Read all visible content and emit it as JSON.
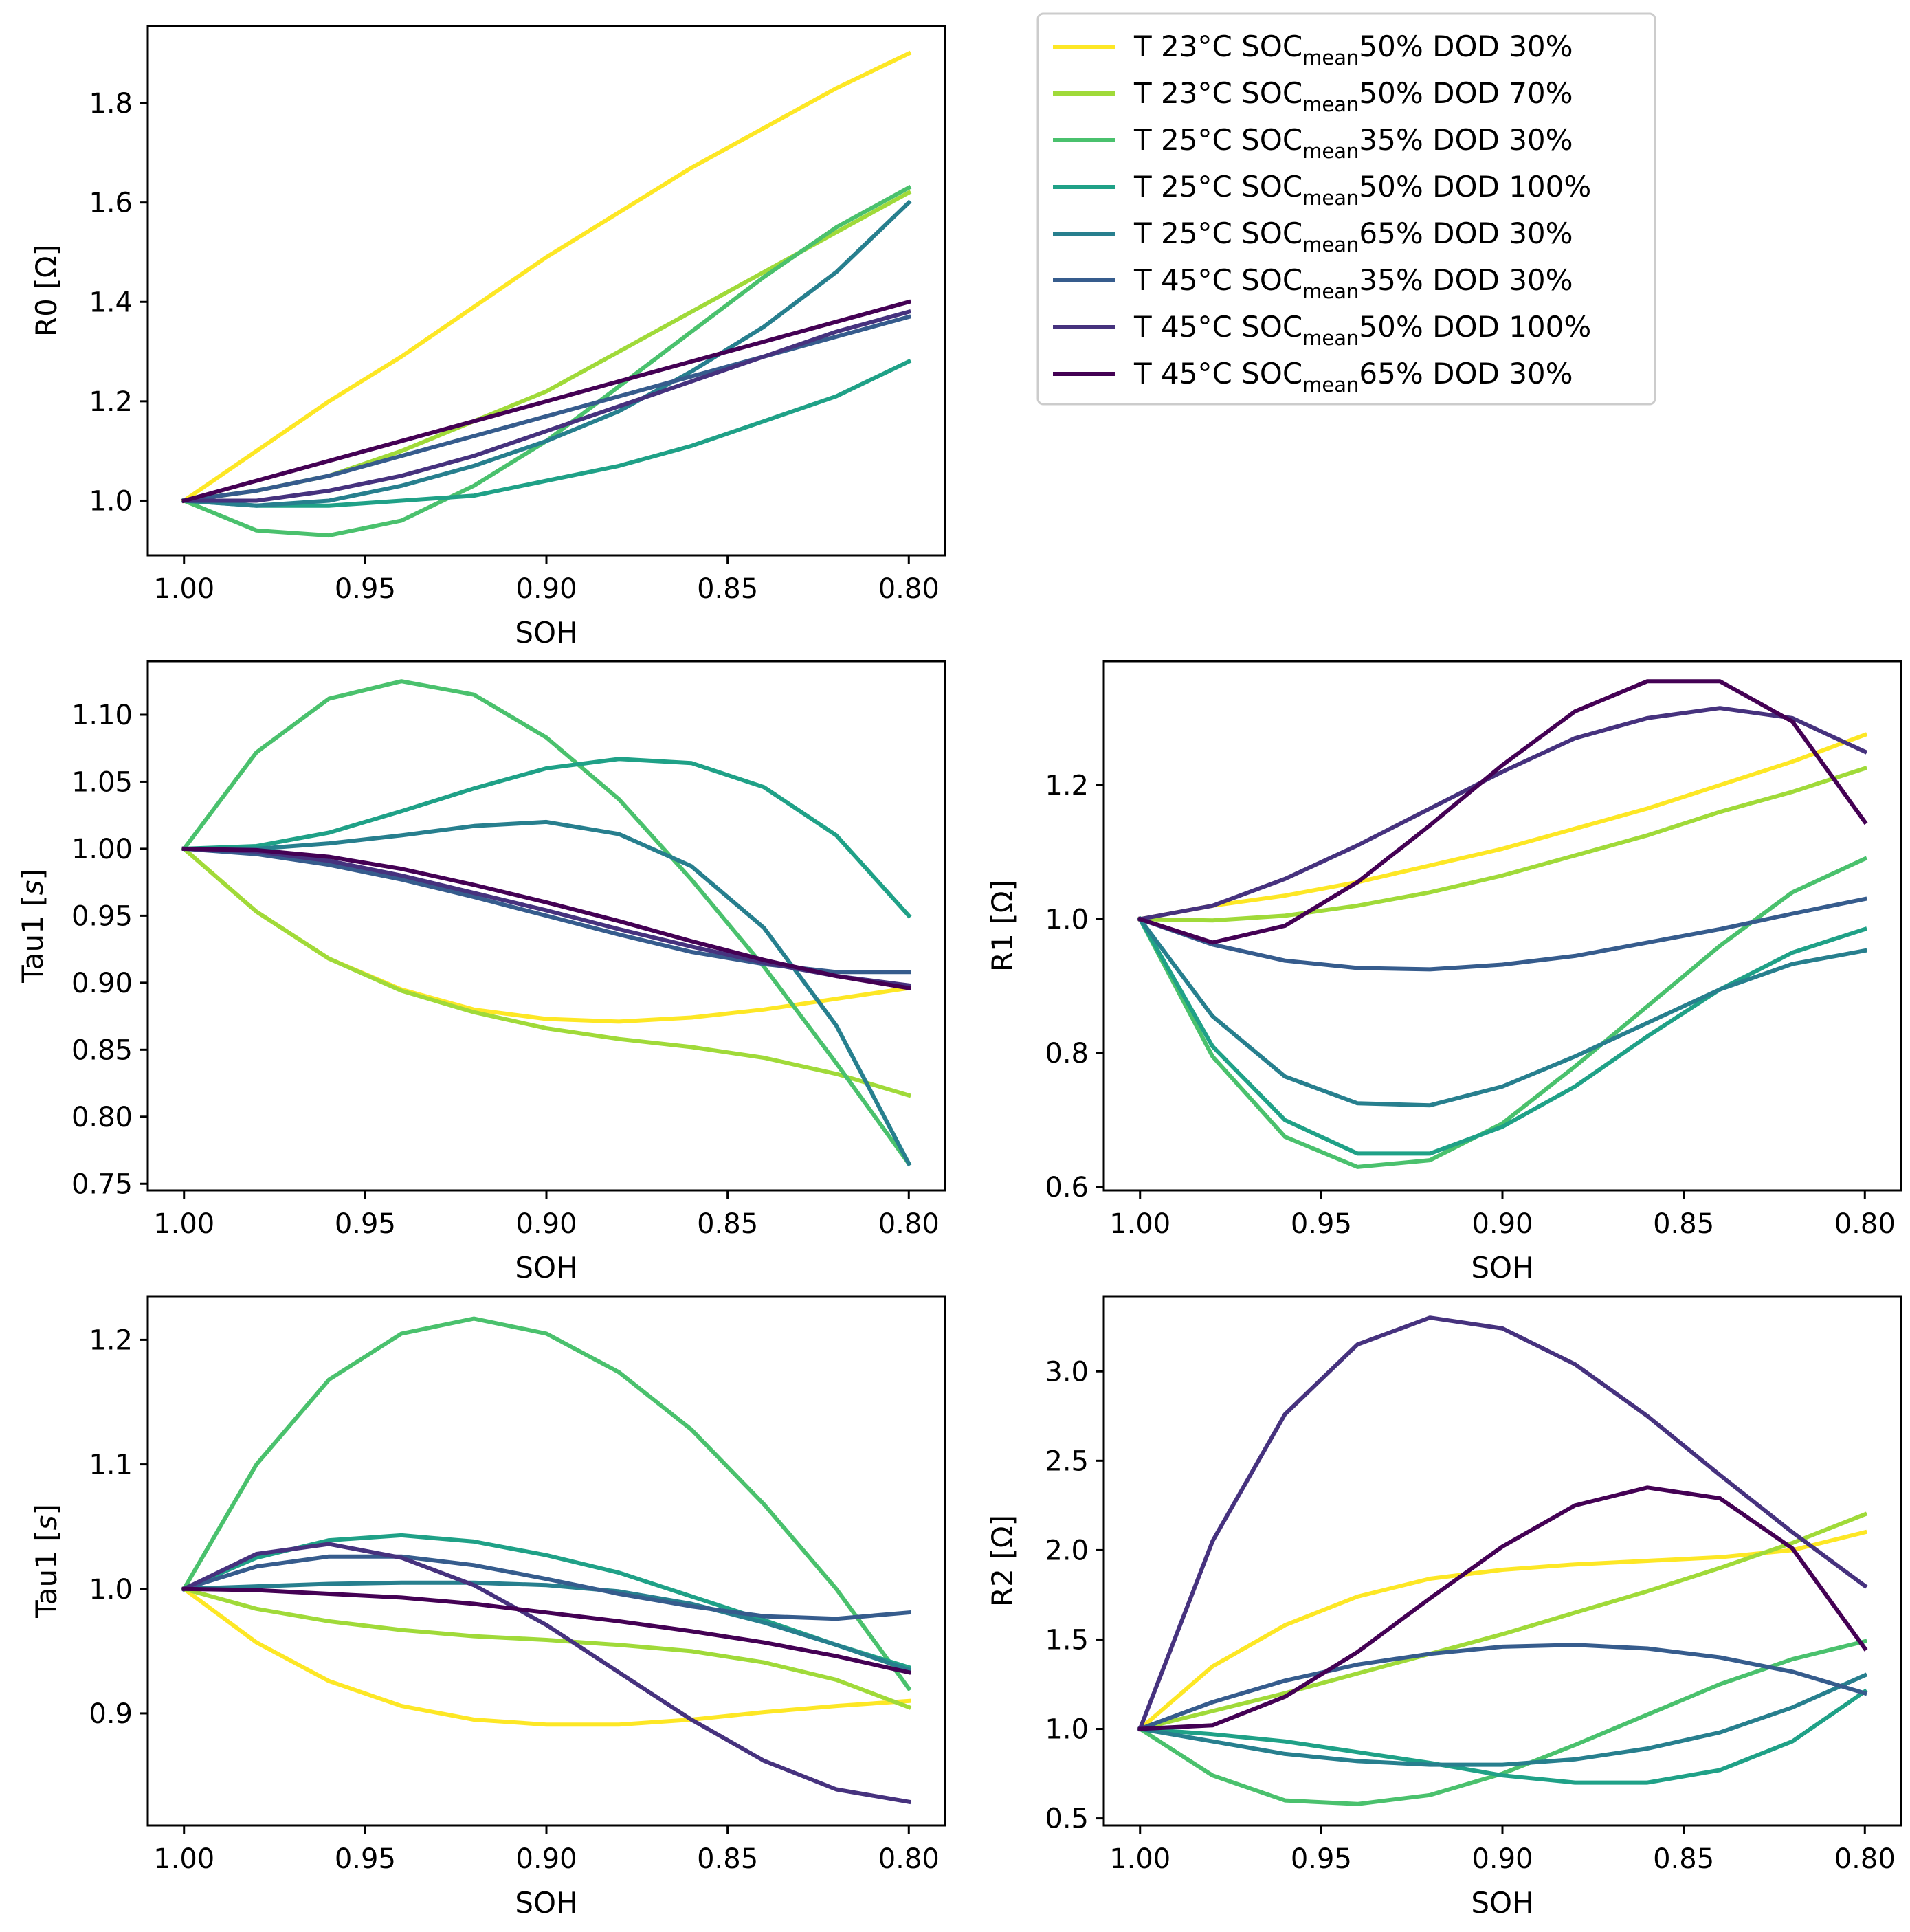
{
  "colors": [
    "#fde725",
    "#a0da39",
    "#4ac16d",
    "#1fa187",
    "#277f8e",
    "#365c8d",
    "#46327e",
    "#440154"
  ],
  "legend": {
    "entries": [
      {
        "pre": "T 23°C SOC",
        "sub": "mean",
        "post": "50% DOD 30%"
      },
      {
        "pre": "T 23°C SOC",
        "sub": "mean",
        "post": "50% DOD 70%"
      },
      {
        "pre": "T 25°C SOC",
        "sub": "mean",
        "post": "35% DOD 30%"
      },
      {
        "pre": "T 25°C SOC",
        "sub": "mean",
        "post": "50% DOD 100%"
      },
      {
        "pre": "T 25°C SOC",
        "sub": "mean",
        "post": "65% DOD 30%"
      },
      {
        "pre": "T 45°C SOC",
        "sub": "mean",
        "post": "35% DOD 30%"
      },
      {
        "pre": "T 45°C SOC",
        "sub": "mean",
        "post": "50% DOD 100%"
      },
      {
        "pre": "T 45°C SOC",
        "sub": "mean",
        "post": "65% DOD 30%"
      }
    ]
  },
  "chart_data": [
    {
      "id": "r0",
      "type": "line",
      "xlabel": "SOH",
      "ylabel": "R0 [Ω]",
      "xlim": [
        1.01,
        0.79
      ],
      "ylim": [
        0.89,
        1.955
      ],
      "xticks": [
        1.0,
        0.95,
        0.9,
        0.85,
        0.8
      ],
      "xtick_labels": [
        "1.00",
        "0.95",
        "0.90",
        "0.85",
        "0.80"
      ],
      "yticks": [
        1.0,
        1.2,
        1.4,
        1.6,
        1.8
      ],
      "ytick_labels": [
        "1.0",
        "1.2",
        "1.4",
        "1.6",
        "1.8"
      ],
      "x": [
        1.0,
        0.98,
        0.96,
        0.94,
        0.92,
        0.9,
        0.88,
        0.86,
        0.84,
        0.82,
        0.8
      ],
      "series": [
        {
          "name": "T 23°C SOCmean50% DOD 30%",
          "values": [
            1.0,
            1.1,
            1.2,
            1.29,
            1.39,
            1.49,
            1.58,
            1.67,
            1.75,
            1.83,
            1.9
          ]
        },
        {
          "name": "T 23°C SOCmean50% DOD 70%",
          "values": [
            1.0,
            1.02,
            1.05,
            1.1,
            1.16,
            1.22,
            1.3,
            1.38,
            1.46,
            1.54,
            1.62
          ]
        },
        {
          "name": "T 25°C SOCmean35% DOD 30%",
          "values": [
            1.0,
            0.94,
            0.93,
            0.96,
            1.03,
            1.12,
            1.23,
            1.34,
            1.45,
            1.55,
            1.63
          ]
        },
        {
          "name": "T 25°C SOCmean50% DOD 100%",
          "values": [
            1.0,
            0.99,
            0.99,
            1.0,
            1.01,
            1.04,
            1.07,
            1.11,
            1.16,
            1.21,
            1.28
          ]
        },
        {
          "name": "T 25°C SOCmean65% DOD 30%",
          "values": [
            1.0,
            0.99,
            1.0,
            1.03,
            1.07,
            1.12,
            1.18,
            1.26,
            1.35,
            1.46,
            1.6
          ]
        },
        {
          "name": "T 45°C SOCmean35% DOD 30%",
          "values": [
            1.0,
            1.02,
            1.05,
            1.09,
            1.13,
            1.17,
            1.21,
            1.25,
            1.29,
            1.33,
            1.37
          ]
        },
        {
          "name": "T 45°C SOCmean50% DOD 100%",
          "values": [
            1.0,
            1.0,
            1.02,
            1.05,
            1.09,
            1.14,
            1.19,
            1.24,
            1.29,
            1.34,
            1.38
          ]
        },
        {
          "name": "T 45°C SOCmean65% DOD 30%",
          "values": [
            1.0,
            1.04,
            1.08,
            1.12,
            1.16,
            1.2,
            1.24,
            1.28,
            1.32,
            1.36,
            1.4
          ]
        }
      ]
    },
    {
      "id": "tau1",
      "type": "line",
      "xlabel": "SOH",
      "ylabel": "Tau1 [s]",
      "xlim": [
        1.01,
        0.79
      ],
      "ylim": [
        0.745,
        1.14
      ],
      "xticks": [
        1.0,
        0.95,
        0.9,
        0.85,
        0.8
      ],
      "xtick_labels": [
        "1.00",
        "0.95",
        "0.90",
        "0.85",
        "0.80"
      ],
      "yticks": [
        0.75,
        0.8,
        0.85,
        0.9,
        0.95,
        1.0,
        1.05,
        1.1
      ],
      "ytick_labels": [
        "0.75",
        "0.80",
        "0.85",
        "0.90",
        "0.95",
        "1.00",
        "1.05",
        "1.10"
      ],
      "x": [
        1.0,
        0.98,
        0.96,
        0.94,
        0.92,
        0.9,
        0.88,
        0.86,
        0.84,
        0.82,
        0.8
      ],
      "series": [
        {
          "name": "T 23°C SOCmean50% DOD 30%",
          "values": [
            1.0,
            0.953,
            0.918,
            0.895,
            0.88,
            0.873,
            0.871,
            0.874,
            0.88,
            0.888,
            0.896
          ]
        },
        {
          "name": "T 23°C SOCmean50% DOD 70%",
          "values": [
            1.0,
            0.953,
            0.918,
            0.894,
            0.878,
            0.866,
            0.858,
            0.852,
            0.844,
            0.832,
            0.816
          ]
        },
        {
          "name": "T 25°C SOCmean35% DOD 30%",
          "values": [
            1.0,
            1.072,
            1.112,
            1.125,
            1.115,
            1.083,
            1.037,
            0.977,
            0.912,
            0.84,
            0.765
          ]
        },
        {
          "name": "T 25°C SOCmean50% DOD 100%",
          "values": [
            1.0,
            1.002,
            1.012,
            1.028,
            1.045,
            1.06,
            1.067,
            1.064,
            1.046,
            1.01,
            0.95
          ]
        },
        {
          "name": "T 25°C SOCmean65% DOD 30%",
          "values": [
            1.0,
            1.0,
            1.004,
            1.01,
            1.017,
            1.02,
            1.011,
            0.987,
            0.941,
            0.868,
            0.765
          ]
        },
        {
          "name": "T 45°C SOCmean35% DOD 30%",
          "values": [
            1.0,
            0.996,
            0.988,
            0.977,
            0.964,
            0.95,
            0.936,
            0.923,
            0.914,
            0.908,
            0.908
          ]
        },
        {
          "name": "T 45°C SOCmean50% DOD 100%",
          "values": [
            1.0,
            0.998,
            0.991,
            0.98,
            0.967,
            0.954,
            0.94,
            0.927,
            0.915,
            0.905,
            0.898
          ]
        },
        {
          "name": "T 45°C SOCmean65% DOD 30%",
          "values": [
            1.0,
            0.999,
            0.994,
            0.985,
            0.973,
            0.96,
            0.946,
            0.931,
            0.917,
            0.905,
            0.896
          ]
        }
      ]
    },
    {
      "id": "r1",
      "type": "line",
      "xlabel": "SOH",
      "ylabel": "R1 [Ω]",
      "xlim": [
        1.01,
        0.79
      ],
      "ylim": [
        0.595,
        1.385
      ],
      "xticks": [
        1.0,
        0.95,
        0.9,
        0.85,
        0.8
      ],
      "xtick_labels": [
        "1.00",
        "0.95",
        "0.90",
        "0.85",
        "0.80"
      ],
      "yticks": [
        0.6,
        0.8,
        1.0,
        1.2
      ],
      "ytick_labels": [
        "0.6",
        "0.8",
        "1.0",
        "1.2"
      ],
      "x": [
        1.0,
        0.98,
        0.96,
        0.94,
        0.92,
        0.9,
        0.88,
        0.86,
        0.84,
        0.82,
        0.8
      ],
      "series": [
        {
          "name": "T 23°C SOCmean50% DOD 30%",
          "values": [
            1.0,
            1.02,
            1.035,
            1.055,
            1.08,
            1.105,
            1.135,
            1.165,
            1.2,
            1.235,
            1.275
          ]
        },
        {
          "name": "T 23°C SOCmean50% DOD 70%",
          "values": [
            1.0,
            0.998,
            1.005,
            1.02,
            1.04,
            1.065,
            1.095,
            1.125,
            1.16,
            1.19,
            1.225
          ]
        },
        {
          "name": "T 25°C SOCmean35% DOD 30%",
          "values": [
            1.0,
            0.795,
            0.675,
            0.63,
            0.64,
            0.695,
            0.78,
            0.87,
            0.96,
            1.04,
            1.09
          ]
        },
        {
          "name": "T 25°C SOCmean50% DOD 100%",
          "values": [
            1.0,
            0.81,
            0.7,
            0.65,
            0.65,
            0.69,
            0.75,
            0.825,
            0.895,
            0.95,
            0.985
          ]
        },
        {
          "name": "T 25°C SOCmean65% DOD 30%",
          "values": [
            1.0,
            0.855,
            0.765,
            0.725,
            0.722,
            0.75,
            0.795,
            0.845,
            0.895,
            0.933,
            0.953
          ]
        },
        {
          "name": "T 45°C SOCmean35% DOD 30%",
          "values": [
            1.0,
            0.962,
            0.938,
            0.927,
            0.925,
            0.932,
            0.945,
            0.965,
            0.985,
            1.008,
            1.03
          ]
        },
        {
          "name": "T 45°C SOCmean50% DOD 100%",
          "values": [
            1.0,
            1.02,
            1.06,
            1.11,
            1.165,
            1.22,
            1.27,
            1.3,
            1.315,
            1.3,
            1.25
          ]
        },
        {
          "name": "T 45°C SOCmean65% DOD 30%",
          "values": [
            1.0,
            0.965,
            0.99,
            1.055,
            1.14,
            1.23,
            1.31,
            1.355,
            1.355,
            1.295,
            1.145
          ]
        }
      ]
    },
    {
      "id": "tau2",
      "type": "line",
      "xlabel": "SOH",
      "ylabel": "Tau1 [s]",
      "xlim": [
        1.01,
        0.79
      ],
      "ylim": [
        0.81,
        1.235
      ],
      "xticks": [
        1.0,
        0.95,
        0.9,
        0.85,
        0.8
      ],
      "xtick_labels": [
        "1.00",
        "0.95",
        "0.90",
        "0.85",
        "0.80"
      ],
      "yticks": [
        0.9,
        1.0,
        1.1,
        1.2
      ],
      "ytick_labels": [
        "0.9",
        "1.0",
        "1.1",
        "1.2"
      ],
      "x": [
        1.0,
        0.98,
        0.96,
        0.94,
        0.92,
        0.9,
        0.88,
        0.86,
        0.84,
        0.82,
        0.8
      ],
      "series": [
        {
          "name": "T 23°C SOCmean50% DOD 30%",
          "values": [
            1.0,
            0.957,
            0.926,
            0.906,
            0.895,
            0.891,
            0.891,
            0.895,
            0.901,
            0.906,
            0.91
          ]
        },
        {
          "name": "T 23°C SOCmean50% DOD 70%",
          "values": [
            1.0,
            0.984,
            0.974,
            0.967,
            0.962,
            0.959,
            0.955,
            0.95,
            0.941,
            0.927,
            0.905
          ]
        },
        {
          "name": "T 25°C SOCmean35% DOD 30%",
          "values": [
            1.0,
            1.1,
            1.168,
            1.205,
            1.217,
            1.205,
            1.174,
            1.128,
            1.068,
            1.0,
            0.92
          ]
        },
        {
          "name": "T 25°C SOCmean50% DOD 100%",
          "values": [
            1.0,
            1.025,
            1.039,
            1.043,
            1.038,
            1.027,
            1.013,
            0.994,
            0.975,
            0.955,
            0.937
          ]
        },
        {
          "name": "T 25°C SOCmean65% DOD 30%",
          "values": [
            1.0,
            1.002,
            1.004,
            1.005,
            1.005,
            1.003,
            0.998,
            0.988,
            0.973,
            0.955,
            0.935
          ]
        },
        {
          "name": "T 45°C SOCmean35% DOD 30%",
          "values": [
            1.0,
            1.018,
            1.026,
            1.026,
            1.019,
            1.008,
            0.996,
            0.986,
            0.978,
            0.976,
            0.981
          ]
        },
        {
          "name": "T 45°C SOCmean50% DOD 100%",
          "values": [
            1.0,
            1.028,
            1.036,
            1.025,
            1.003,
            0.971,
            0.933,
            0.895,
            0.862,
            0.839,
            0.829
          ]
        },
        {
          "name": "T 45°C SOCmean65% DOD 30%",
          "values": [
            1.0,
            0.999,
            0.996,
            0.993,
            0.988,
            0.981,
            0.974,
            0.966,
            0.957,
            0.946,
            0.933
          ]
        }
      ]
    },
    {
      "id": "r2",
      "type": "line",
      "xlabel": "SOH",
      "ylabel": "R2 [Ω]",
      "xlim": [
        1.01,
        0.79
      ],
      "ylim": [
        0.46,
        3.42
      ],
      "xticks": [
        1.0,
        0.95,
        0.9,
        0.85,
        0.8
      ],
      "xtick_labels": [
        "1.00",
        "0.95",
        "0.90",
        "0.85",
        "0.80"
      ],
      "yticks": [
        0.5,
        1.0,
        1.5,
        2.0,
        2.5,
        3.0
      ],
      "ytick_labels": [
        "0.5",
        "1.0",
        "1.5",
        "2.0",
        "2.5",
        "3.0"
      ],
      "x": [
        1.0,
        0.98,
        0.96,
        0.94,
        0.92,
        0.9,
        0.88,
        0.86,
        0.84,
        0.82,
        0.8
      ],
      "series": [
        {
          "name": "T 23°C SOCmean50% DOD 30%",
          "values": [
            1.0,
            1.35,
            1.58,
            1.74,
            1.84,
            1.89,
            1.92,
            1.94,
            1.96,
            2.0,
            2.1
          ]
        },
        {
          "name": "T 23°C SOCmean50% DOD 70%",
          "values": [
            1.0,
            1.1,
            1.2,
            1.31,
            1.42,
            1.53,
            1.65,
            1.77,
            1.9,
            2.04,
            2.2
          ]
        },
        {
          "name": "T 25°C SOCmean35% DOD 30%",
          "values": [
            1.0,
            0.74,
            0.6,
            0.58,
            0.63,
            0.75,
            0.91,
            1.08,
            1.25,
            1.39,
            1.49
          ]
        },
        {
          "name": "T 25°C SOCmean50% DOD 100%",
          "values": [
            1.0,
            0.97,
            0.93,
            0.87,
            0.81,
            0.74,
            0.7,
            0.7,
            0.77,
            0.93,
            1.21
          ]
        },
        {
          "name": "T 25°C SOCmean65% DOD 30%",
          "values": [
            1.0,
            0.93,
            0.86,
            0.82,
            0.8,
            0.8,
            0.83,
            0.89,
            0.98,
            1.12,
            1.3
          ]
        },
        {
          "name": "T 45°C SOCmean35% DOD 30%",
          "values": [
            1.0,
            1.15,
            1.27,
            1.36,
            1.42,
            1.46,
            1.47,
            1.45,
            1.4,
            1.32,
            1.2
          ]
        },
        {
          "name": "T 45°C SOCmean50% DOD 100%",
          "values": [
            1.0,
            2.05,
            2.76,
            3.15,
            3.3,
            3.24,
            3.04,
            2.75,
            2.42,
            2.1,
            1.8
          ]
        },
        {
          "name": "T 45°C SOCmean65% DOD 30%",
          "values": [
            1.0,
            1.02,
            1.18,
            1.43,
            1.73,
            2.02,
            2.25,
            2.35,
            2.29,
            2.01,
            1.45
          ]
        }
      ]
    }
  ]
}
